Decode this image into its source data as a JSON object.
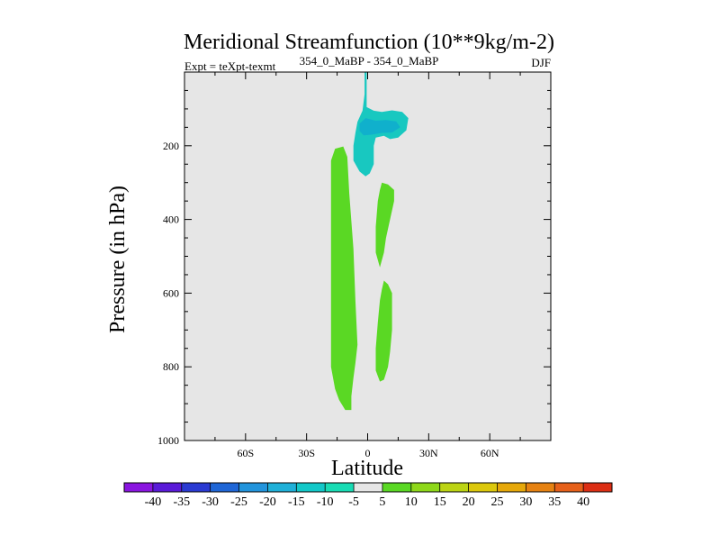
{
  "chart_data": {
    "type": "contour",
    "title": "Meridional Streamfunction (10**9kg/m-2)",
    "subtitle_left": "Expt = teXpt-texmt",
    "subtitle_center": "354_0_MaBP - 354_0_MaBP",
    "subtitle_right": "DJF",
    "xlabel": "Latitude",
    "ylabel": "Pressure (in hPa)",
    "xlim": [
      -90,
      90
    ],
    "ylim": [
      1000,
      0
    ],
    "x_ticks": [
      {
        "value": -60,
        "label": "60S"
      },
      {
        "value": -30,
        "label": "30S"
      },
      {
        "value": 0,
        "label": "0"
      },
      {
        "value": 30,
        "label": "30N"
      },
      {
        "value": 60,
        "label": "60N"
      }
    ],
    "y_ticks": [
      {
        "value": 200,
        "label": "200"
      },
      {
        "value": 400,
        "label": "400"
      },
      {
        "value": 600,
        "label": "600"
      },
      {
        "value": 800,
        "label": "800"
      },
      {
        "value": 1000,
        "label": "1000"
      }
    ],
    "background_color": "#e6e6e6",
    "colorbar": {
      "levels": [
        "-40",
        "-35",
        "-30",
        "-25",
        "-20",
        "-15",
        "-10",
        "-5",
        "5",
        "10",
        "15",
        "20",
        "25",
        "30",
        "35",
        "40"
      ],
      "colors": [
        "#8a15e0",
        "#5a1ad8",
        "#2a3ad2",
        "#1f66d6",
        "#2294dc",
        "#1fb0d8",
        "#12c8c8",
        "#18dcb4",
        "#e6e6e6",
        "#5ad824",
        "#8ed81a",
        "#bcd414",
        "#dcc80c",
        "#e6a80a",
        "#e68212",
        "#e6601a",
        "#dc2e14"
      ]
    },
    "regions": [
      {
        "name": "upper-tropical-negative-cell",
        "level": "-10 to -5",
        "color": "#18c8c0",
        "points": [
          [
            -1.5,
            0
          ],
          [
            -0.5,
            0
          ],
          [
            -0.5,
            60
          ],
          [
            -0.5,
            95
          ],
          [
            3,
            105
          ],
          [
            7,
            108
          ],
          [
            12,
            104
          ],
          [
            17,
            108
          ],
          [
            20,
            125
          ],
          [
            19,
            158
          ],
          [
            15,
            178
          ],
          [
            11,
            182
          ],
          [
            8,
            173
          ],
          [
            4,
            178
          ],
          [
            3,
            200
          ],
          [
            3,
            250
          ],
          [
            1,
            275
          ],
          [
            -1,
            283
          ],
          [
            -4,
            270
          ],
          [
            -7,
            240
          ],
          [
            -7,
            200
          ],
          [
            -6,
            165
          ],
          [
            -5,
            135
          ],
          [
            -2.5,
            105
          ],
          [
            -1.5,
            60
          ]
        ]
      },
      {
        "name": "upper-core-negative",
        "level": "-15 to -10",
        "color": "#10b0cc",
        "points": [
          [
            -4,
            140
          ],
          [
            -1,
            125
          ],
          [
            4,
            132
          ],
          [
            9,
            130
          ],
          [
            14,
            134
          ],
          [
            16,
            150
          ],
          [
            12,
            164
          ],
          [
            7,
            165
          ],
          [
            2,
            170
          ],
          [
            -2,
            172
          ],
          [
            -4,
            160
          ]
        ]
      },
      {
        "name": "southern-hemisphere-positive-cell",
        "level": "5 to 10",
        "color": "#5ad824",
        "points": [
          [
            -16,
            208
          ],
          [
            -12,
            202
          ],
          [
            -10,
            230
          ],
          [
            -9,
            330
          ],
          [
            -7,
            480
          ],
          [
            -6,
            620
          ],
          [
            -5,
            740
          ],
          [
            -6,
            790
          ],
          [
            -7,
            830
          ],
          [
            -8,
            880
          ],
          [
            -8,
            917
          ],
          [
            -11,
            917
          ],
          [
            -14,
            890
          ],
          [
            -16,
            860
          ],
          [
            -18,
            800
          ],
          [
            -18,
            650
          ],
          [
            -18,
            500
          ],
          [
            -18,
            350
          ],
          [
            -18,
            240
          ]
        ]
      },
      {
        "name": "northern-tropical-positive-upper",
        "level": "5 to 10",
        "color": "#5ad824",
        "points": [
          [
            7,
            300
          ],
          [
            10,
            305
          ],
          [
            13,
            320
          ],
          [
            13,
            350
          ],
          [
            11,
            400
          ],
          [
            9,
            450
          ],
          [
            8,
            490
          ],
          [
            6,
            530
          ],
          [
            4,
            490
          ],
          [
            4,
            420
          ],
          [
            5,
            350
          ],
          [
            6,
            320
          ]
        ]
      },
      {
        "name": "northern-tropical-positive-lower",
        "level": "5 to 10",
        "color": "#5ad824",
        "points": [
          [
            8,
            566
          ],
          [
            10,
            576
          ],
          [
            12,
            600
          ],
          [
            12,
            650
          ],
          [
            12,
            700
          ],
          [
            11,
            760
          ],
          [
            10,
            800
          ],
          [
            8,
            835
          ],
          [
            6,
            840
          ],
          [
            4,
            810
          ],
          [
            4,
            750
          ],
          [
            5,
            680
          ],
          [
            6,
            620
          ],
          [
            7,
            590
          ]
        ]
      }
    ]
  }
}
